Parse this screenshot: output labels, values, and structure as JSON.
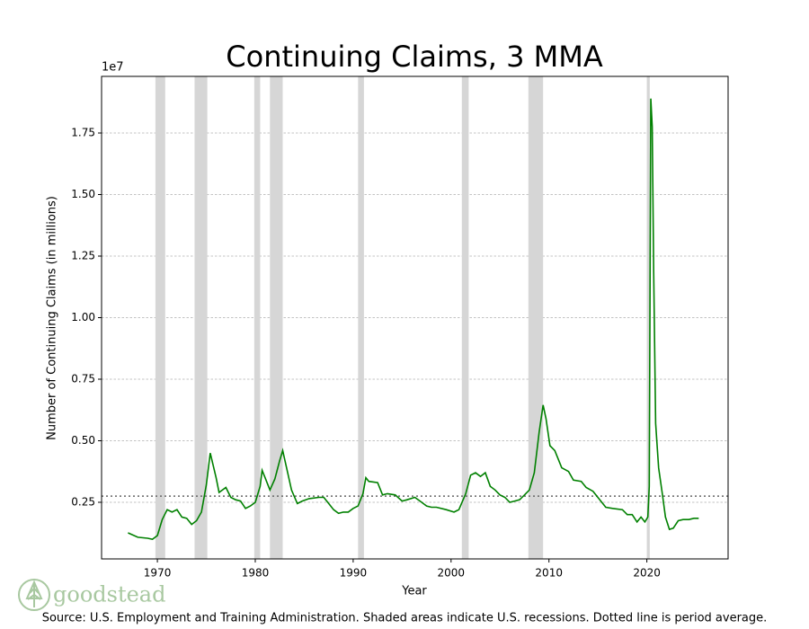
{
  "chart_data": {
    "type": "line",
    "title": "Continuing Claims, 3 MMA",
    "x_label": "Year",
    "y_label": "Number of Continuing Claims (in millions)",
    "y_offset_label": "1e7",
    "source": "Source: U.S. Employment and Training Administration. Shaded areas indicate U.S. recessions. Dotted line is period average.",
    "logo": "goodstead",
    "xlim": [
      1964.3,
      2028.3
    ],
    "xticks": [
      1970,
      1980,
      1990,
      2000,
      2010,
      2020
    ],
    "ylim": [
      0.02,
      1.98
    ],
    "yticks": [
      0.25,
      {
        "value": 0.5,
        "label": "0.50"
      },
      0.75,
      {
        "value": 1,
        "label": "1.00"
      },
      1.25,
      {
        "value": 1.5,
        "label": "1.50"
      },
      1.75
    ],
    "grid": true,
    "average": 0.275,
    "average_color": "#666666",
    "recession_color": "#d6d6d6",
    "recessions": [
      [
        1969.8,
        1970.8
      ],
      [
        1973.8,
        1975.1
      ],
      [
        1979.9,
        1980.5
      ],
      [
        1981.5,
        1982.8
      ],
      [
        1990.5,
        1991.1
      ],
      [
        2001.1,
        2001.8
      ],
      [
        2007.9,
        2009.4
      ],
      [
        2020.0,
        2020.3
      ]
    ],
    "series": [
      {
        "name": "Continuing Claims",
        "color": "#008000",
        "x": [
          1967.0,
          1968,
          1969,
          1969.5,
          1970,
          1970.5,
          1971,
          1971.5,
          1972,
          1972.5,
          1973,
          1973.5,
          1974,
          1974.5,
          1975,
          1975.4,
          1976,
          1976.3,
          1977,
          1977.5,
          1978,
          1978.5,
          1979,
          1979.5,
          1980,
          1980.5,
          1980.7,
          1981,
          1981.5,
          1982,
          1982.5,
          1982.8,
          1983.2,
          1983.7,
          1984.3,
          1984.8,
          1985.5,
          1986.5,
          1987,
          1987.5,
          1988,
          1988.5,
          1989,
          1989.5,
          1990,
          1990.5,
          1991.0,
          1991.3,
          1991.6,
          1992.5,
          1993,
          1993.5,
          1994.3,
          1995,
          1995.5,
          1996.3,
          1997,
          1997.5,
          1998,
          1998.5,
          1999.5,
          2000.3,
          2000.8,
          2001.5,
          2002,
          2002.5,
          2003,
          2003.5,
          2004,
          2004.5,
          2005,
          2005.5,
          2006,
          2006.5,
          2007,
          2007.5,
          2008,
          2008.5,
          2009,
          2009.4,
          2009.7,
          2010.1,
          2010.6,
          2011.3,
          2012,
          2012.5,
          2013.3,
          2013.8,
          2014.5,
          2015.2,
          2015.8,
          2016.5,
          2017.5,
          2018,
          2018.5,
          2019,
          2019.4,
          2019.8,
          2020.1,
          2020.25,
          2020.4,
          2020.55,
          2020.7,
          2020.9,
          2021.2,
          2021.6,
          2021.9,
          2022.3,
          2022.7,
          2023.2,
          2023.7,
          2024.3,
          2024.8,
          2025.3
        ],
        "values": [
          0.126,
          0.108,
          0.104,
          0.1,
          0.115,
          0.18,
          0.22,
          0.21,
          0.22,
          0.19,
          0.185,
          0.16,
          0.175,
          0.21,
          0.32,
          0.45,
          0.35,
          0.29,
          0.31,
          0.27,
          0.26,
          0.255,
          0.225,
          0.235,
          0.25,
          0.315,
          0.38,
          0.35,
          0.3,
          0.345,
          0.42,
          0.46,
          0.39,
          0.3,
          0.245,
          0.255,
          0.265,
          0.27,
          0.27,
          0.245,
          0.22,
          0.205,
          0.21,
          0.21,
          0.225,
          0.235,
          0.285,
          0.35,
          0.335,
          0.33,
          0.28,
          0.285,
          0.28,
          0.255,
          0.26,
          0.27,
          0.25,
          0.235,
          0.23,
          0.23,
          0.22,
          0.21,
          0.22,
          0.285,
          0.36,
          0.37,
          0.355,
          0.37,
          0.315,
          0.3,
          0.28,
          0.27,
          0.25,
          0.255,
          0.26,
          0.28,
          0.3,
          0.37,
          0.535,
          0.645,
          0.59,
          0.48,
          0.46,
          0.39,
          0.375,
          0.34,
          0.335,
          0.31,
          0.295,
          0.26,
          0.23,
          0.225,
          0.22,
          0.2,
          0.2,
          0.17,
          0.19,
          0.17,
          0.19,
          0.315,
          1.89,
          1.775,
          1.19,
          0.57,
          0.39,
          0.28,
          0.19,
          0.14,
          0.145,
          0.175,
          0.18,
          0.18,
          0.185,
          0.185
        ]
      }
    ]
  }
}
